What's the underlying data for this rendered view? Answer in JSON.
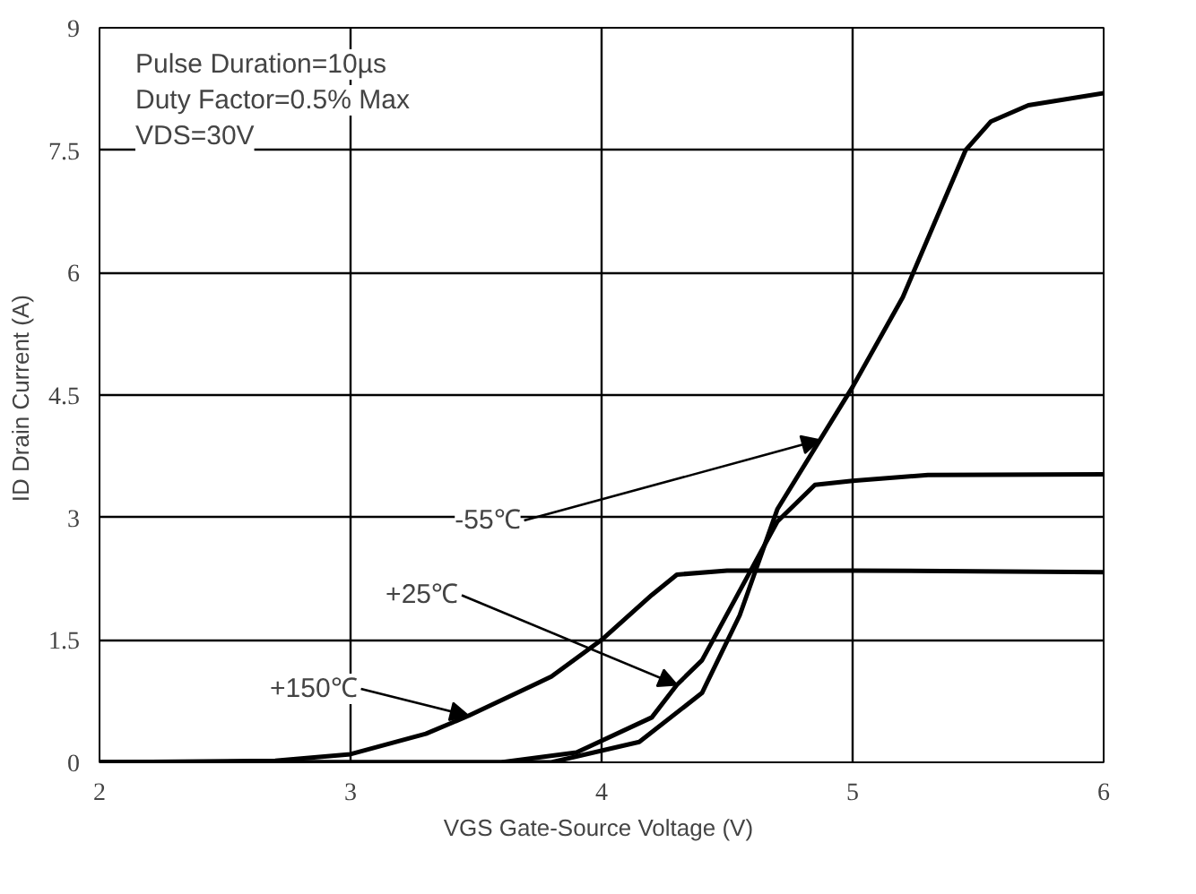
{
  "chart_data": {
    "type": "line",
    "xlabel": "VGS  Gate-Source Voltage (V)",
    "ylabel": "ID Drain Current  (A)",
    "xlim": [
      2,
      6
    ],
    "ylim": [
      0,
      9
    ],
    "xticks": [
      2,
      3,
      4,
      5,
      6
    ],
    "yticks": [
      0,
      1.5,
      3,
      4.5,
      6,
      7.5,
      9
    ],
    "grid": true,
    "line_style": "solid",
    "series": [
      {
        "color": "#000000",
        "x": [
          2,
          2.7,
          3,
          3.3,
          3.47,
          3.8,
          4,
          4.2,
          4.3,
          4.5,
          5,
          6
        ],
        "values": [
          0,
          0.02,
          0.1,
          0.35,
          0.57,
          1.05,
          1.5,
          2.05,
          2.3,
          2.35,
          2.35,
          2.33
        ]
      },
      {
        "color": "#000000",
        "x": [
          2,
          3.6,
          3.9,
          4.2,
          4.3,
          4.4,
          4.55,
          4.7,
          4.85,
          5,
          5.3,
          6
        ],
        "values": [
          0,
          0,
          0.12,
          0.55,
          0.95,
          1.25,
          2.1,
          2.95,
          3.4,
          3.45,
          3.52,
          3.53
        ]
      },
      {
        "color": "#000000",
        "x": [
          2,
          3.8,
          4.15,
          4.4,
          4.55,
          4.7,
          5,
          5.2,
          5.45,
          5.55,
          5.7,
          6
        ],
        "values": [
          0,
          0,
          0.25,
          0.85,
          1.8,
          3.1,
          4.6,
          5.7,
          7.5,
          7.85,
          8.05,
          8.2
        ]
      }
    ],
    "annotations": [
      "Pulse Duration=10µs",
      "Duty Factor=0.5% Max",
      "VDS=30V",
      {
        "text": "-55℃",
        "x": 4.87,
        "y": 3.95
      },
      {
        "text": "+25℃",
        "x": 4.3,
        "y": 0.95
      },
      {
        "text": "+150℃",
        "x": 3.47,
        "y": 0.57
      }
    ]
  }
}
